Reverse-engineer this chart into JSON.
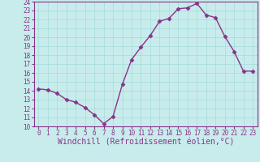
{
  "x": [
    0,
    1,
    2,
    3,
    4,
    5,
    6,
    7,
    8,
    9,
    10,
    11,
    12,
    13,
    14,
    15,
    16,
    17,
    18,
    19,
    20,
    21,
    22,
    23
  ],
  "y": [
    14.2,
    14.1,
    13.7,
    13.0,
    12.7,
    12.1,
    11.3,
    10.3,
    11.1,
    14.7,
    17.5,
    18.9,
    20.2,
    21.8,
    22.1,
    23.2,
    23.3,
    23.8,
    22.5,
    22.2,
    20.1,
    18.4,
    16.2,
    16.2
  ],
  "line_color": "#883388",
  "marker": "D",
  "markersize": 2.5,
  "linewidth": 1.0,
  "bg_color": "#c8ecec",
  "grid_color": "#aadddd",
  "xlabel": "Windchill (Refroidissement éolien,°C)",
  "xlim": [
    -0.5,
    23.5
  ],
  "ylim": [
    10,
    24
  ],
  "yticks": [
    10,
    11,
    12,
    13,
    14,
    15,
    16,
    17,
    18,
    19,
    20,
    21,
    22,
    23,
    24
  ],
  "xticks": [
    0,
    1,
    2,
    3,
    4,
    5,
    6,
    7,
    8,
    9,
    10,
    11,
    12,
    13,
    14,
    15,
    16,
    17,
    18,
    19,
    20,
    21,
    22,
    23
  ],
  "tick_color": "#883388",
  "tick_fontsize": 5.5,
  "xlabel_fontsize": 7.0,
  "spine_color": "#883388"
}
